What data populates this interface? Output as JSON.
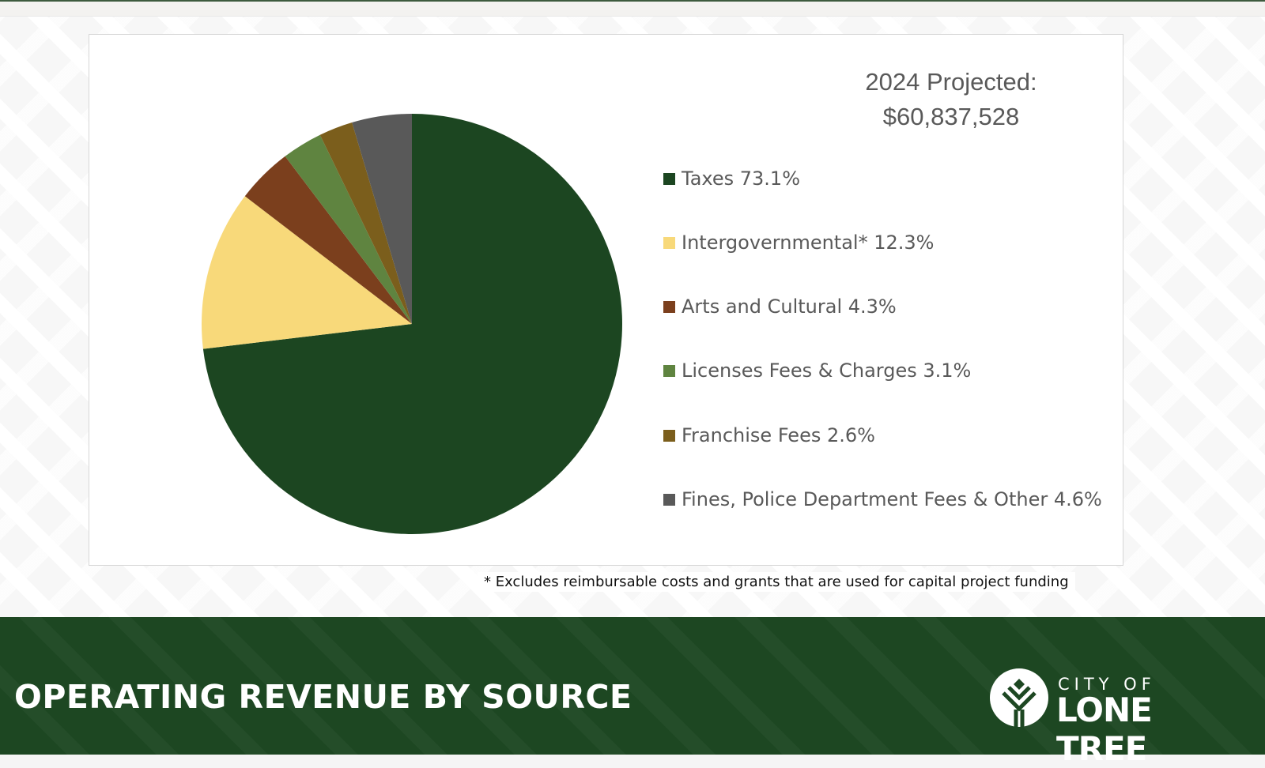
{
  "chart_data": {
    "type": "pie",
    "title_line1": "2024 Projected:",
    "title_line2": "$60,837,528",
    "categories": [
      "Taxes",
      "Intergovernmental*",
      "Arts and Cultural",
      "Licenses Fees & Charges",
      "Franchise Fees",
      "Fines, Police Department Fees & Other"
    ],
    "values": [
      73.1,
      12.3,
      4.3,
      3.1,
      2.6,
      4.6
    ],
    "legend_labels": [
      "Taxes 73.1%",
      "Intergovernmental* 12.3%",
      "Arts and Cultural 4.3%",
      "Licenses Fees & Charges 3.1%",
      "Franchise Fees 2.6%",
      "Fines, Police Department Fees & Other 4.6%"
    ],
    "colors": [
      "#1c4621",
      "#f8d97a",
      "#7b3f1d",
      "#5f8440",
      "#7b5e1c",
      "#595959"
    ],
    "legend_placement": "right",
    "start_angle": "top",
    "direction": "clockwise"
  },
  "footnote": "* Excludes reimbursable costs and grants that are used for capital project funding",
  "slide_title": "OPERATING REVENUE BY SOURCE",
  "logo": {
    "line1": "CITY OF",
    "line2": "LONE TREE"
  }
}
